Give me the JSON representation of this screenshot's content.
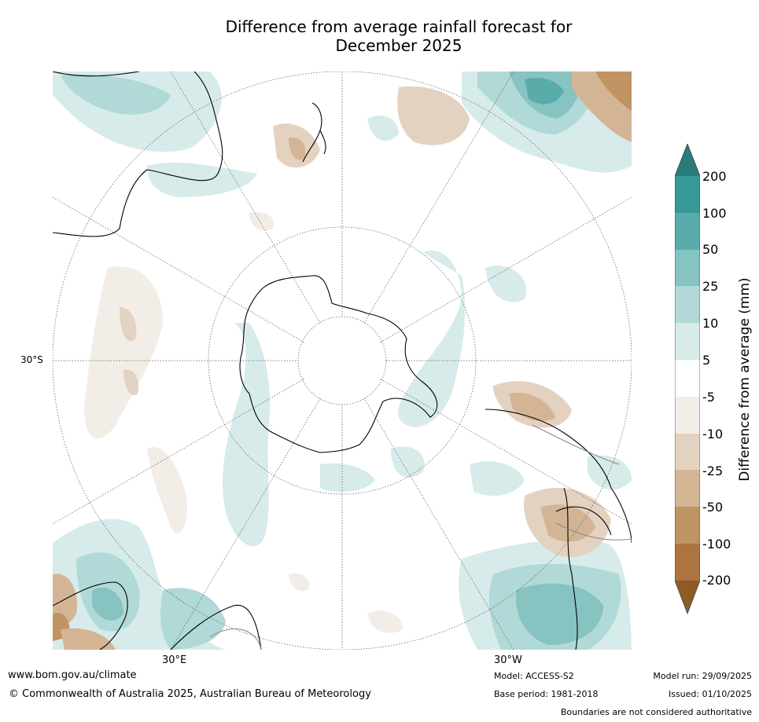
{
  "title": {
    "line1": "Difference from average rainfall forecast for",
    "line2": "December 2025"
  },
  "map": {
    "projection": "south polar stereographic",
    "lat_label": "30°S",
    "lon_labels": {
      "east": "30°E",
      "west": "30°W"
    },
    "features": {
      "land_outline": "black coastlines",
      "graticule": "dotted grey lines"
    }
  },
  "legend": {
    "title": "Difference from average (mm)",
    "levels": [
      "200",
      "100",
      "50",
      "25",
      "10",
      "5",
      "-5",
      "-10",
      "-25",
      "-50",
      "-100",
      "-200"
    ],
    "colors": {
      "above_200": "#2a7b79",
      "100_200": "#349a98",
      "50_100": "#5aacaa",
      "25_50": "#86c3c1",
      "10_25": "#b0d9d7",
      "5_10": "#d6ebea",
      "neutral": "#ffffff",
      "minus10_minus5": "#f3ede7",
      "minus25_minus10": "#e4d2c1",
      "minus50_minus25": "#d3b596",
      "minus100_minus50": "#c09362",
      "minus200_minus100": "#ad743f",
      "below_minus200": "#8e5a26"
    }
  },
  "footer": {
    "url": "www.bom.gov.au/climate",
    "copyright": "© Commonwealth of Australia 2025, Australian Bureau of Meteorology",
    "model": "Model: ACCESS-S2",
    "base_period": "Base period: 1981-2018",
    "model_run": "Model run: 29/09/2025",
    "issued": "Issued: 01/10/2025",
    "disclaimer": "Boundaries are not considered authoritative"
  }
}
